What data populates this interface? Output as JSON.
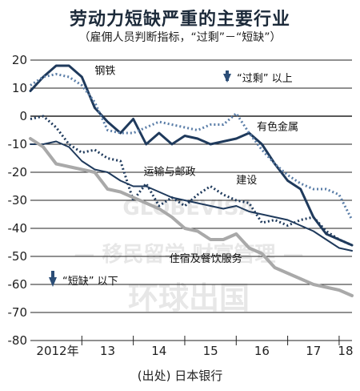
{
  "chart_data": {
    "type": "line",
    "title": "劳动力短缺严重的主要行业",
    "subtitle": "（雇佣人员判断指标，“过剩”－“短缺”）",
    "source": "(出处) 日本银行",
    "ylim": [
      -80,
      20
    ],
    "yticks": [
      20,
      10,
      0,
      -10,
      -20,
      -30,
      -40,
      -50,
      -60,
      -70,
      -80
    ],
    "x_labels": [
      "2012年",
      "13",
      "14",
      "15",
      "16",
      "17",
      "18"
    ],
    "x_year_start": 2012,
    "x_year_end": 2018.25,
    "up_annotation": "“过剩” 以上",
    "down_annotation": "“短缺” 以下",
    "watermark": {
      "line1": "GLOBEVISA",
      "line2": "— 移民留学 财富管理 —",
      "line3": "环球出国"
    },
    "series": [
      {
        "name": "钢铁",
        "color": "#1f3a5c",
        "dash": "solid",
        "width": 3,
        "x": [
          2012.0,
          2012.25,
          2012.5,
          2012.75,
          2013.0,
          2013.25,
          2013.5,
          2013.75,
          2014.0,
          2014.25,
          2014.5,
          2014.75,
          2015.0,
          2015.25,
          2015.5,
          2015.75,
          2016.0,
          2016.25,
          2016.5,
          2016.75,
          2017.0,
          2017.25,
          2017.5,
          2017.75,
          2018.0,
          2018.25
        ],
        "y": [
          9,
          14,
          18,
          18,
          14,
          3,
          -2,
          -6,
          -1,
          -10,
          -6,
          -10,
          -7,
          -8,
          -10,
          -9,
          -8,
          -6,
          -10,
          -17,
          -23,
          -26,
          -36,
          -42,
          -44,
          -46
        ]
      },
      {
        "name": "有色金属",
        "color": "#5b7ea8",
        "dash": "dotted",
        "width": 3,
        "x": [
          2012.0,
          2012.25,
          2012.5,
          2012.75,
          2013.0,
          2013.25,
          2013.5,
          2013.75,
          2014.0,
          2014.25,
          2014.5,
          2014.75,
          2015.0,
          2015.25,
          2015.5,
          2015.75,
          2016.0,
          2016.25,
          2016.5,
          2016.75,
          2017.0,
          2017.25,
          2017.5,
          2017.75,
          2018.0,
          2018.25
        ],
        "y": [
          11,
          14,
          15,
          14,
          11,
          5,
          -5,
          -6,
          -6,
          -4,
          -2,
          -3,
          -4,
          -5,
          -3,
          -3,
          1,
          -6,
          -12,
          -17,
          -21,
          -24,
          -26,
          -26,
          -28,
          -37
        ]
      },
      {
        "name": "运输与邮政",
        "color": "#1f3a5c",
        "dash": "solid",
        "width": 2,
        "x": [
          2012.0,
          2012.25,
          2012.5,
          2012.75,
          2013.0,
          2013.25,
          2013.5,
          2013.75,
          2014.0,
          2014.25,
          2014.5,
          2014.75,
          2015.0,
          2015.25,
          2015.5,
          2015.75,
          2016.0,
          2016.25,
          2016.5,
          2016.75,
          2017.0,
          2017.25,
          2017.5,
          2017.75,
          2018.0,
          2018.25
        ],
        "y": [
          -10,
          -10,
          -9,
          -11,
          -16,
          -19,
          -20,
          -23,
          -25,
          -25,
          -27,
          -29,
          -30,
          -31,
          -32,
          -33,
          -32,
          -34,
          -35,
          -36,
          -37,
          -39,
          -41,
          -44,
          -47,
          -48
        ]
      },
      {
        "name": "建设",
        "color": "#1f3a5c",
        "dash": "dotted",
        "width": 3,
        "x": [
          2012.0,
          2012.25,
          2012.5,
          2012.75,
          2013.0,
          2013.25,
          2013.5,
          2013.75,
          2014.0,
          2014.25,
          2014.5,
          2014.75,
          2015.0,
          2015.25,
          2015.5,
          2015.75,
          2016.0,
          2016.25,
          2016.5,
          2016.75,
          2017.0,
          2017.25,
          2017.5,
          2017.75,
          2018.0,
          2018.25
        ],
        "y": [
          -1,
          0,
          -4,
          -10,
          -13,
          -12,
          -15,
          -16,
          -30,
          -24,
          -32,
          -29,
          -32,
          -28,
          -25,
          -28,
          -30,
          -31,
          -38,
          -37,
          -39,
          -37,
          -36,
          -41,
          -44,
          -46
        ]
      },
      {
        "name": "住宿及餐饮服务",
        "color": "#a9a9a9",
        "dash": "solid",
        "width": 4,
        "x": [
          2012.0,
          2012.25,
          2012.5,
          2012.75,
          2013.0,
          2013.25,
          2013.5,
          2013.75,
          2014.0,
          2014.25,
          2014.5,
          2014.75,
          2015.0,
          2015.25,
          2015.5,
          2015.75,
          2016.0,
          2016.25,
          2016.5,
          2016.75,
          2017.0,
          2017.25,
          2017.5,
          2017.75,
          2018.0,
          2018.25
        ],
        "y": [
          -8,
          -11,
          -17,
          -18,
          -19,
          -20,
          -26,
          -27,
          -29,
          -31,
          -33,
          -36,
          -40,
          -41,
          -44,
          -44,
          -42,
          -47,
          -49,
          -54,
          -56,
          -58,
          -60,
          -61,
          -62,
          -64
        ]
      }
    ],
    "labels": [
      {
        "text": "钢铁",
        "x": 2013.25,
        "y": 15
      },
      {
        "text": "有色金属",
        "x": 2016.4,
        "y": -5
      },
      {
        "text": "运输与邮政",
        "x": 2014.2,
        "y": -21
      },
      {
        "text": "建设",
        "x": 2016.0,
        "y": -24
      },
      {
        "text": "住宿及餐饮服务",
        "x": 2014.7,
        "y": -52
      }
    ]
  }
}
